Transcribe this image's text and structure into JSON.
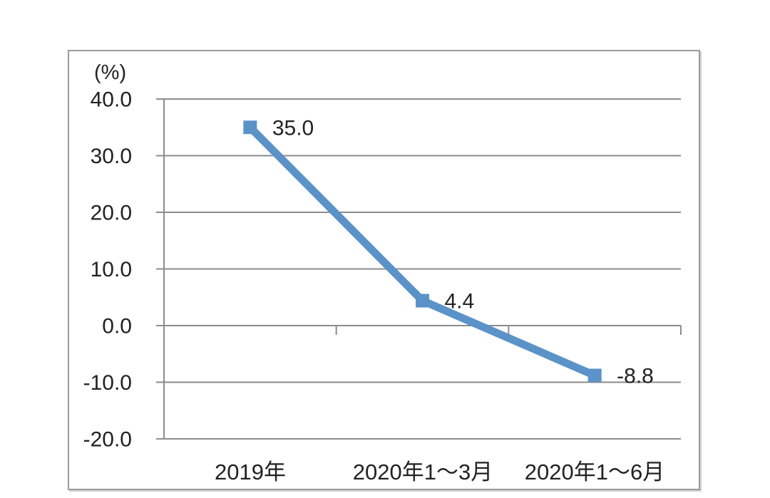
{
  "chart": {
    "unit_label": "(%)",
    "colors": {
      "series": "#5B92C8",
      "grid": "#8C8C8C",
      "text": "#222222",
      "panel_border": "#9B9B9B",
      "background": "#FFFFFF"
    }
  },
  "chart_data": {
    "type": "line",
    "categories": [
      "2019年",
      "2020年1～3月",
      "2020年1～6月"
    ],
    "values": [
      35.0,
      4.4,
      -8.8
    ],
    "data_labels": [
      "35.0",
      "4.4",
      "-8.8"
    ],
    "title": "",
    "xlabel": "",
    "ylabel": "(%)",
    "ylim": [
      -20.0,
      40.0
    ],
    "ytick_step": 10,
    "ytick_labels": [
      "40.0",
      "30.0",
      "20.0",
      "10.0",
      "0.0",
      "-10.0",
      "-20.0"
    ],
    "grid": true,
    "legend_position": "none",
    "marker": "square",
    "series_name": ""
  }
}
